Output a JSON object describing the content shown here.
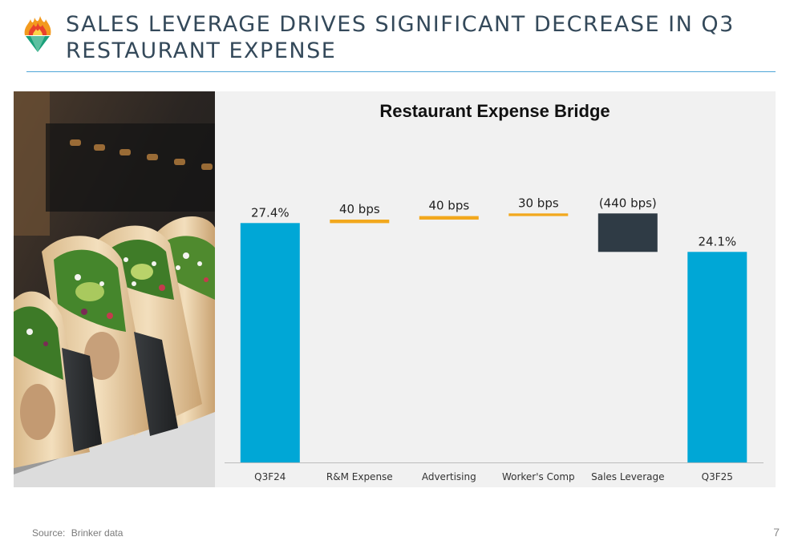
{
  "header": {
    "title": "SALES LEVERAGE DRIVES SIGNIFICANT DECREASE IN Q3 RESTAURANT EXPENSE",
    "logo_icon": "chili-flame-logo-icon"
  },
  "photo": {
    "subject": "tacos-photo"
  },
  "footer": {
    "source_label": "Source:",
    "source_text": "Brinker data",
    "page_number": "7"
  },
  "colors": {
    "total_bar": "#00a7d6",
    "increase_bar": "#f2a81d",
    "decrease_bar": "#2f3b45",
    "title": "#34495a",
    "rule": "#4fa6d8"
  },
  "chart_data": {
    "type": "bar",
    "subtype": "waterfall",
    "title": "Restaurant Expense Bridge",
    "categories": [
      "Q3F24",
      "R&M Expense",
      "Advertising",
      "Worker's Comp",
      "Sales Leverage",
      "Q3F25"
    ],
    "steps": [
      {
        "category": "Q3F24",
        "kind": "total",
        "start": 0,
        "end": 27.4,
        "label": "27.4%"
      },
      {
        "category": "R&M Expense",
        "kind": "increase",
        "start": 27.4,
        "end": 27.8,
        "label": "40 bps"
      },
      {
        "category": "Advertising",
        "kind": "increase",
        "start": 27.8,
        "end": 28.2,
        "label": "40 bps"
      },
      {
        "category": "Worker's Comp",
        "kind": "increase",
        "start": 28.2,
        "end": 28.5,
        "label": "30 bps"
      },
      {
        "category": "Sales Leverage",
        "kind": "decrease",
        "start": 28.5,
        "end": 24.1,
        "label": "(440 bps)"
      },
      {
        "category": "Q3F25",
        "kind": "total",
        "start": 0,
        "end": 24.1,
        "label": "24.1%"
      }
    ],
    "units": "% of sales",
    "grid": false,
    "legend": "none"
  }
}
